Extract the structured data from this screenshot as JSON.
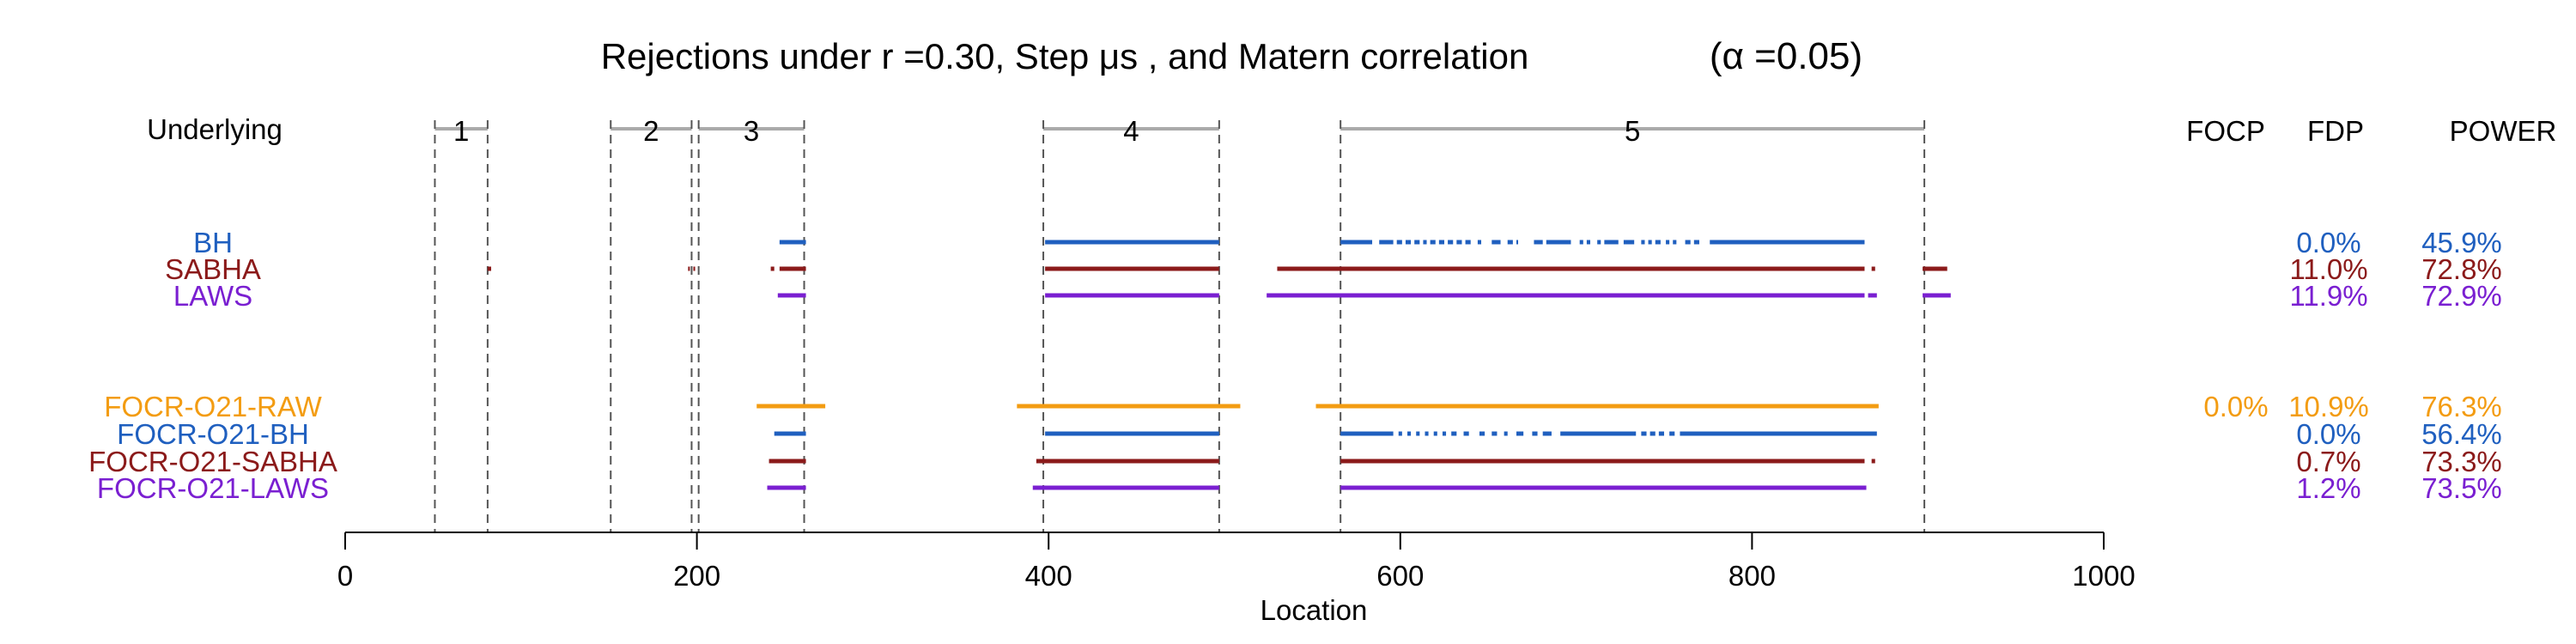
{
  "chart_data": {
    "type": "rejection-interval-plot",
    "title": "Rejections under  r =0.30,  Step μs , and Matern correlation",
    "title_alpha": "(α =0.05)",
    "xlabel": "Location",
    "xlim": [
      0,
      1000
    ],
    "x_ticks": [
      0,
      200,
      400,
      600,
      800,
      1000
    ],
    "underlying_label": "Underlying",
    "column_headers": {
      "focp": "FOCP",
      "fdp": "FDP",
      "power": "POWER"
    },
    "regions": [
      {
        "label": "1",
        "start": 51,
        "end": 81
      },
      {
        "label": "2",
        "start": 151,
        "end": 197
      },
      {
        "label": "3",
        "start": 201,
        "end": 261
      },
      {
        "label": "4",
        "start": 397,
        "end": 497
      },
      {
        "label": "5",
        "start": 566,
        "end": 898
      }
    ],
    "colors": {
      "BH": "#1f5fbf",
      "SABHA": "#8b1a1a",
      "LAWS": "#7a1fd1",
      "RAW": "#f39c12",
      "region": "#aaaaaa"
    },
    "methods": [
      {
        "name": "BH",
        "color": "#1f5fbf",
        "group": 1,
        "fdp": "0.0%",
        "power": "45.9%",
        "segments": [
          [
            247,
            262
          ],
          [
            398,
            497
          ],
          [
            566,
            584
          ],
          [
            588,
            596
          ],
          [
            598,
            601
          ],
          [
            603,
            606
          ],
          [
            608,
            611
          ],
          [
            613,
            615
          ],
          [
            617,
            620
          ],
          [
            622,
            625
          ],
          [
            627,
            630
          ],
          [
            632,
            635
          ],
          [
            637,
            640
          ],
          [
            644,
            646
          ],
          [
            652,
            657
          ],
          [
            661,
            664
          ],
          [
            666,
            667
          ],
          [
            676,
            681
          ],
          [
            683,
            697
          ],
          [
            702,
            704
          ],
          [
            706,
            708
          ],
          [
            712,
            714
          ],
          [
            716,
            724
          ],
          [
            727,
            733
          ],
          [
            737,
            739
          ],
          [
            741,
            743
          ],
          [
            745,
            748
          ],
          [
            751,
            753
          ],
          [
            755,
            757
          ],
          [
            762,
            765
          ],
          [
            767,
            770
          ],
          [
            776,
            864
          ]
        ]
      },
      {
        "name": "SABHA",
        "color": "#8b1a1a",
        "group": 1,
        "fdp": "11.0%",
        "power": "72.8%",
        "segments": [
          [
            81,
            83
          ],
          [
            195,
            196
          ],
          [
            198,
            199
          ],
          [
            242,
            244
          ],
          [
            247,
            262
          ],
          [
            398,
            497
          ],
          [
            530,
            864
          ],
          [
            868,
            870
          ],
          [
            897,
            911
          ]
        ]
      },
      {
        "name": "LAWS",
        "color": "#7a1fd1",
        "group": 1,
        "fdp": "11.9%",
        "power": "72.9%",
        "segments": [
          [
            246,
            262
          ],
          [
            398,
            497
          ],
          [
            524,
            864
          ],
          [
            866,
            871
          ],
          [
            897,
            913
          ]
        ]
      },
      {
        "name": "FOCR-O21-RAW",
        "color": "#f39c12",
        "group": 2,
        "focp": "0.0%",
        "fdp": "10.9%",
        "power": "76.3%",
        "segments": [
          [
            234,
            273
          ],
          [
            382,
            509
          ],
          [
            552,
            872
          ]
        ]
      },
      {
        "name": "FOCR-O21-BH",
        "color": "#1f5fbf",
        "group": 2,
        "fdp": "0.0%",
        "power": "56.4%",
        "segments": [
          [
            244,
            262
          ],
          [
            398,
            497
          ],
          [
            566,
            596
          ],
          [
            599,
            601
          ],
          [
            604,
            606
          ],
          [
            609,
            611
          ],
          [
            614,
            616
          ],
          [
            619,
            621
          ],
          [
            624,
            626
          ],
          [
            629,
            632
          ],
          [
            636,
            639
          ],
          [
            645,
            648
          ],
          [
            652,
            655
          ],
          [
            659,
            661
          ],
          [
            666,
            670
          ],
          [
            675,
            678
          ],
          [
            681,
            686
          ],
          [
            691,
            734
          ],
          [
            737,
            740
          ],
          [
            742,
            745
          ],
          [
            747,
            750
          ],
          [
            753,
            756
          ],
          [
            759,
            871
          ]
        ]
      },
      {
        "name": "FOCR-O21-SABHA",
        "color": "#8b1a1a",
        "group": 2,
        "fdp": "0.7%",
        "power": "73.3%",
        "segments": [
          [
            241,
            262
          ],
          [
            393,
            497
          ],
          [
            566,
            864
          ],
          [
            868,
            870
          ]
        ]
      },
      {
        "name": "FOCR-O21-LAWS",
        "color": "#7a1fd1",
        "group": 2,
        "fdp": "1.2%",
        "power": "73.5%",
        "segments": [
          [
            240,
            262
          ],
          [
            391,
            497
          ],
          [
            566,
            865
          ]
        ]
      }
    ]
  }
}
